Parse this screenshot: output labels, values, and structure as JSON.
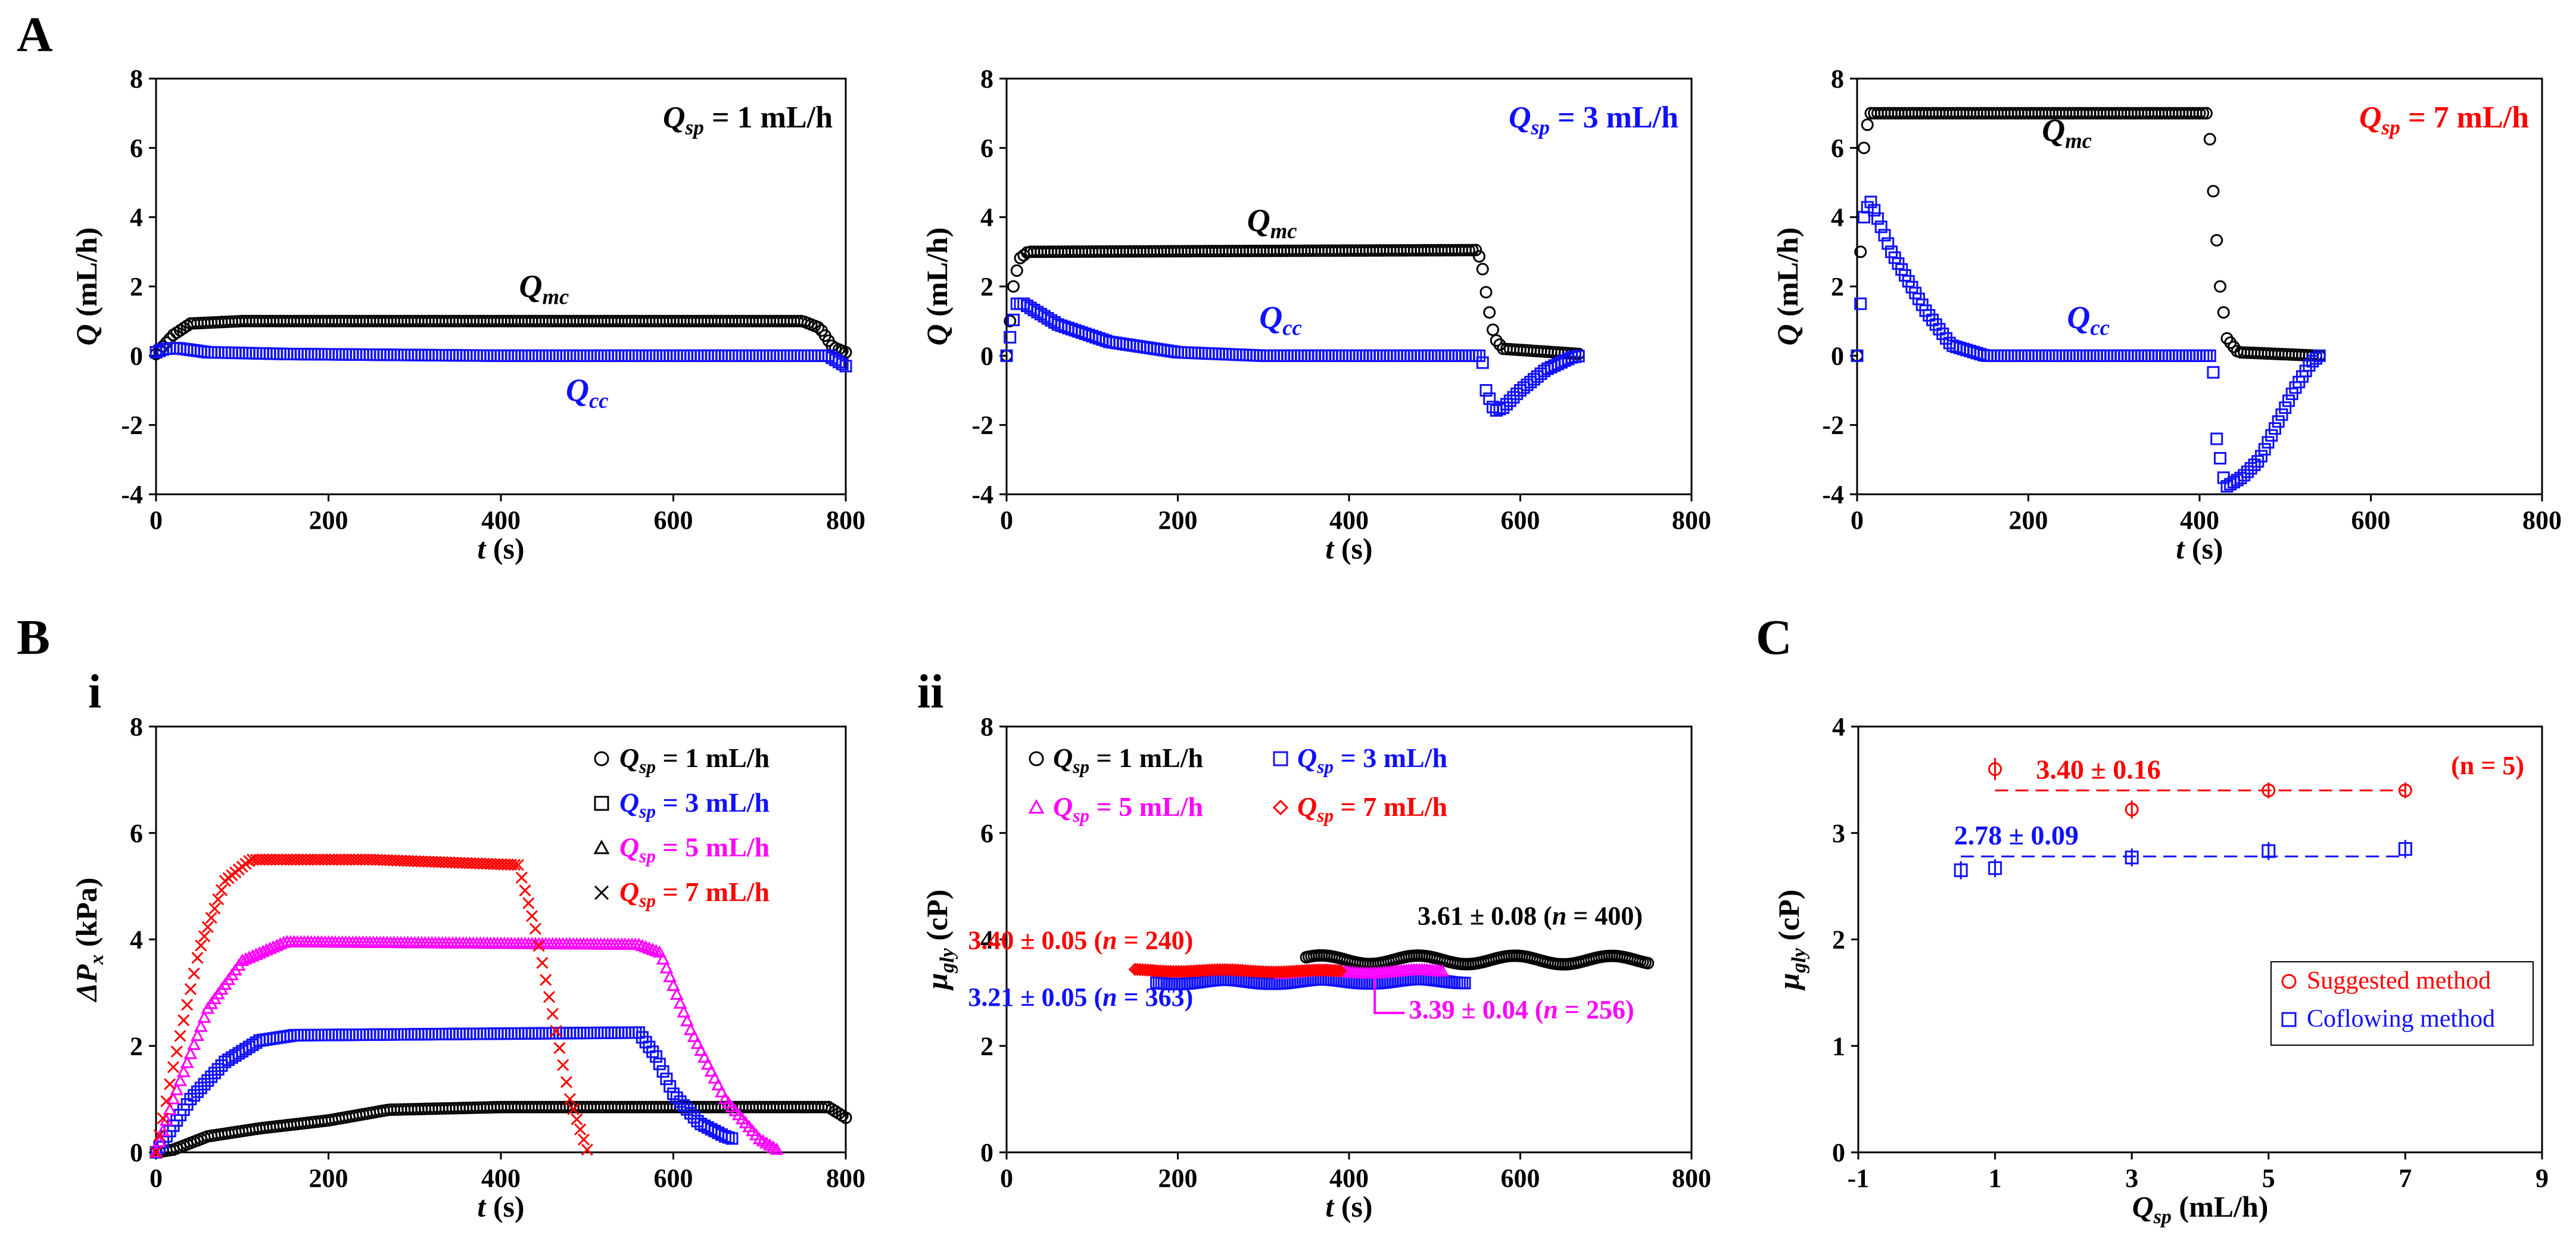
{
  "panel_labels": {
    "A": "A",
    "B": "B",
    "C": "C",
    "i": "i",
    "ii": "ii"
  },
  "colors": {
    "black": "#000000",
    "blue": "#1010ff",
    "red": "#ff0000",
    "magenta": "#ff00ff"
  },
  "chart_data": [
    {
      "id": "A1",
      "type": "scatter",
      "xlabel": "t (s)",
      "ylabel": "Q (mL/h)",
      "xlim": [
        0,
        800
      ],
      "ylim": [
        -4,
        8
      ],
      "xticks": [
        0,
        200,
        400,
        600,
        800
      ],
      "yticks": [
        -4,
        -2,
        0,
        2,
        4,
        6,
        8
      ],
      "title": "Qsp = 1 mL/h",
      "title_color": "#000000",
      "series": [
        {
          "name": "Q_mc",
          "label": "Qmc",
          "marker": "circle",
          "color": "#000000",
          "curve": [
            [
              0,
              0.05
            ],
            [
              20,
              0.6
            ],
            [
              40,
              0.93
            ],
            [
              100,
              1.0
            ],
            [
              500,
              1.0
            ],
            [
              750,
              1.0
            ],
            [
              770,
              0.8
            ],
            [
              785,
              0.25
            ],
            [
              800,
              0.1
            ]
          ]
        },
        {
          "name": "Q_cc",
          "label": "Qcc",
          "marker": "square",
          "color": "#1010ff",
          "curve": [
            [
              0,
              0.1
            ],
            [
              10,
              0.2
            ],
            [
              25,
              0.22
            ],
            [
              60,
              0.1
            ],
            [
              150,
              0.05
            ],
            [
              400,
              0.0
            ],
            [
              780,
              0.0
            ],
            [
              800,
              -0.3
            ]
          ]
        }
      ],
      "annotations": [
        {
          "text": "Qmc",
          "x": 450,
          "y": 1.7,
          "color": "#000000"
        },
        {
          "text": "Qcc",
          "x": 500,
          "y": -1.3,
          "color": "#1010ff"
        }
      ]
    },
    {
      "id": "A2",
      "type": "scatter",
      "xlabel": "t (s)",
      "ylabel": "Q (mL/h)",
      "xlim": [
        0,
        800
      ],
      "ylim": [
        -4,
        8
      ],
      "xticks": [
        0,
        200,
        400,
        600,
        800
      ],
      "yticks": [
        -4,
        -2,
        0,
        2,
        4,
        6,
        8
      ],
      "title": "Qsp = 3 mL/h",
      "title_color": "#1010ff",
      "series": [
        {
          "name": "Q_mc",
          "label": "Qmc",
          "marker": "circle",
          "color": "#000000",
          "curve": [
            [
              0,
              0.0
            ],
            [
              8,
              2.0
            ],
            [
              15,
              2.8
            ],
            [
              25,
              3.0
            ],
            [
              550,
              3.05
            ],
            [
              556,
              2.5
            ],
            [
              562,
              1.5
            ],
            [
              570,
              0.5
            ],
            [
              580,
              0.2
            ],
            [
              670,
              0.05
            ]
          ]
        },
        {
          "name": "Q_cc",
          "label": "Qcc",
          "marker": "square",
          "color": "#1010ff",
          "curve": [
            [
              0,
              0.0
            ],
            [
              6,
              0.8
            ],
            [
              12,
              1.5
            ],
            [
              20,
              1.5
            ],
            [
              60,
              0.9
            ],
            [
              120,
              0.4
            ],
            [
              200,
              0.1
            ],
            [
              300,
              0.0
            ],
            [
              555,
              0.0
            ],
            [
              560,
              -1.0
            ],
            [
              570,
              -1.6
            ],
            [
              580,
              -1.5
            ],
            [
              600,
              -1.0
            ],
            [
              630,
              -0.4
            ],
            [
              660,
              -0.05
            ],
            [
              670,
              0.0
            ]
          ]
        }
      ],
      "annotations": [
        {
          "text": "Qmc",
          "x": 310,
          "y": 3.6,
          "color": "#000000"
        },
        {
          "text": "Qcc",
          "x": 320,
          "y": 0.8,
          "color": "#1010ff"
        }
      ]
    },
    {
      "id": "A3",
      "type": "scatter",
      "xlabel": "t (s)",
      "ylabel": "Q (mL/h)",
      "xlim": [
        0,
        800
      ],
      "ylim": [
        -4,
        8
      ],
      "xticks": [
        0,
        200,
        400,
        600,
        800
      ],
      "yticks": [
        -4,
        -2,
        0,
        2,
        4,
        6,
        8
      ],
      "title": "Qsp = 7 mL/h",
      "title_color": "#ff0000",
      "series": [
        {
          "name": "Q_mc",
          "label": "Qmc",
          "marker": "circle",
          "color": "#000000",
          "curve": [
            [
              0,
              0.0
            ],
            [
              4,
              3.0
            ],
            [
              8,
              6.0
            ],
            [
              14,
              7.0
            ],
            [
              410,
              7.0
            ],
            [
              418,
              4.0
            ],
            [
              424,
              2.0
            ],
            [
              432,
              0.5
            ],
            [
              445,
              0.1
            ],
            [
              540,
              0.0
            ]
          ]
        },
        {
          "name": "Q_cc",
          "label": "Qcc",
          "marker": "square",
          "color": "#1010ff",
          "curve": [
            [
              0,
              0.0
            ],
            [
              4,
              1.5
            ],
            [
              8,
              4.0
            ],
            [
              15,
              4.5
            ],
            [
              40,
              3.0
            ],
            [
              80,
              1.3
            ],
            [
              110,
              0.3
            ],
            [
              150,
              0.0
            ],
            [
              415,
              0.0
            ],
            [
              420,
              -2.4
            ],
            [
              430,
              -3.8
            ],
            [
              450,
              -3.5
            ],
            [
              470,
              -3.0
            ],
            [
              490,
              -2.0
            ],
            [
              510,
              -1.0
            ],
            [
              530,
              -0.2
            ],
            [
              540,
              0.0
            ]
          ]
        }
      ],
      "annotations": [
        {
          "text": "Qmc",
          "x": 245,
          "y": 6.2,
          "color": "#000000"
        },
        {
          "text": "Qcc",
          "x": 270,
          "y": 0.8,
          "color": "#1010ff"
        }
      ]
    },
    {
      "id": "Bi",
      "type": "scatter",
      "xlabel": "t (s)",
      "ylabel": "ΔPx (kPa)",
      "xlim": [
        0,
        800
      ],
      "ylim": [
        0,
        8
      ],
      "xticks": [
        0,
        200,
        400,
        600,
        800
      ],
      "yticks": [
        0,
        2,
        4,
        6,
        8
      ],
      "legend": [
        {
          "text": "Qsp = 1 mL/h",
          "color": "#000000",
          "marker": "circle"
        },
        {
          "text": "Qsp = 3 mL/h",
          "color": "#1010ff",
          "marker": "square"
        },
        {
          "text": "Qsp = 5 mL/h",
          "color": "#ff00ff",
          "marker": "triangle"
        },
        {
          "text": "Qsp = 7 mL/h",
          "color": "#ff0000",
          "marker": "x"
        }
      ],
      "series": [
        {
          "name": "Qsp = 1 mL/h",
          "marker": "circle",
          "color": "#000000",
          "curve": [
            [
              0,
              0.0
            ],
            [
              20,
              0.05
            ],
            [
              60,
              0.3
            ],
            [
              120,
              0.45
            ],
            [
              200,
              0.6
            ],
            [
              270,
              0.8
            ],
            [
              400,
              0.85
            ],
            [
              780,
              0.85
            ],
            [
              800,
              0.65
            ]
          ]
        },
        {
          "name": "Qsp = 3 mL/h",
          "marker": "square",
          "color": "#1010ff",
          "curve": [
            [
              0,
              0.0
            ],
            [
              40,
              1.0
            ],
            [
              80,
              1.7
            ],
            [
              120,
              2.1
            ],
            [
              160,
              2.2
            ],
            [
              560,
              2.25
            ],
            [
              580,
              1.8
            ],
            [
              600,
              1.1
            ],
            [
              630,
              0.55
            ],
            [
              660,
              0.3
            ],
            [
              670,
              0.25
            ]
          ]
        },
        {
          "name": "Qsp = 5 mL/h",
          "marker": "triangle",
          "color": "#ff00ff",
          "curve": [
            [
              0,
              0.0
            ],
            [
              20,
              1.0
            ],
            [
              60,
              2.7
            ],
            [
              100,
              3.6
            ],
            [
              150,
              3.95
            ],
            [
              560,
              3.9
            ],
            [
              585,
              3.75
            ],
            [
              620,
              2.3
            ],
            [
              660,
              1.0
            ],
            [
              700,
              0.25
            ],
            [
              720,
              0.05
            ]
          ]
        },
        {
          "name": "Qsp = 7 mL/h",
          "marker": "x",
          "color": "#ff0000",
          "curve": [
            [
              0,
              0.0
            ],
            [
              20,
              1.6
            ],
            [
              50,
              3.8
            ],
            [
              80,
              5.1
            ],
            [
              110,
              5.5
            ],
            [
              250,
              5.5
            ],
            [
              420,
              5.4
            ],
            [
              440,
              4.2
            ],
            [
              460,
              2.6
            ],
            [
              480,
              1.0
            ],
            [
              500,
              0.05
            ]
          ]
        }
      ]
    },
    {
      "id": "Bii",
      "type": "scatter",
      "xlabel": "t (s)",
      "ylabel": "μgly (cP)",
      "xlim": [
        0,
        800
      ],
      "ylim": [
        0,
        8
      ],
      "xticks": [
        0,
        200,
        400,
        600,
        800
      ],
      "yticks": [
        0,
        2,
        4,
        6,
        8
      ],
      "legend": [
        {
          "text": "Qsp = 1 mL/h",
          "color": "#000000",
          "marker": "circle"
        },
        {
          "text": "Qsp = 3 mL/h",
          "color": "#1010ff",
          "marker": "square"
        },
        {
          "text": "Qsp = 5 mL/h",
          "color": "#ff00ff",
          "marker": "triangle"
        },
        {
          "text": "Qsp = 7 mL/h",
          "color": "#ff0000",
          "marker": "diamond"
        }
      ],
      "series": [
        {
          "name": "Qsp = 1 mL/h",
          "marker": "circle",
          "color": "#000000",
          "wave": 0.08,
          "curve": [
            [
              350,
              3.62
            ],
            [
              750,
              3.61
            ]
          ]
        },
        {
          "name": "Qsp = 3 mL/h",
          "marker": "square",
          "color": "#1010ff",
          "wave": 0.04,
          "curve": [
            [
              175,
              3.2
            ],
            [
              535,
              3.22
            ]
          ]
        },
        {
          "name": "Qsp = 5 mL/h",
          "marker": "triangle",
          "color": "#ff00ff",
          "wave": 0.03,
          "curve": [
            [
              320,
              3.38
            ],
            [
              510,
              3.4
            ]
          ]
        },
        {
          "name": "Qsp = 7 mL/h",
          "marker": "diamond",
          "color": "#ff0000",
          "wave": 0.02,
          "curve": [
            [
              150,
              3.42
            ],
            [
              390,
              3.4
            ]
          ]
        }
      ],
      "annotations": [
        {
          "text": "3.61 ± 0.08 (n = 400)",
          "color": "#000000"
        },
        {
          "text": "3.40 ± 0.05 (n = 240)",
          "color": "#ff0000"
        },
        {
          "text": "3.21 ± 0.05 (n = 363)",
          "color": "#1010ff"
        },
        {
          "text": "3.39 ± 0.04 (n = 256)",
          "color": "#ff00ff"
        }
      ]
    },
    {
      "id": "C",
      "type": "scatter",
      "xlabel": "Qsp (mL/h)",
      "ylabel": "μgly (cP)",
      "xlim": [
        -1,
        9
      ],
      "ylim": [
        0,
        4
      ],
      "xticks": [
        -1,
        1,
        3,
        5,
        7,
        9
      ],
      "yticks": [
        0,
        1,
        2,
        3,
        4
      ],
      "note": "(n = 5)",
      "series": [
        {
          "name": "Suggested method",
          "marker": "circle",
          "color": "#ff0000",
          "x": [
            1,
            3,
            5,
            7
          ],
          "y": [
            3.6,
            3.22,
            3.4,
            3.4
          ],
          "err": [
            0.06,
            0.04,
            0.03,
            0.03
          ],
          "mean_line": 3.4,
          "mean_text": "3.40 ± 0.16",
          "line_x": [
            1,
            7
          ]
        },
        {
          "name": "Coflowing method",
          "marker": "square",
          "color": "#1010ff",
          "x": [
            0.5,
            1,
            3,
            5,
            7
          ],
          "y": [
            2.65,
            2.67,
            2.77,
            2.83,
            2.85
          ],
          "err": [
            0.04,
            0.04,
            0.04,
            0.04,
            0.04
          ],
          "mean_line": 2.78,
          "mean_text": "2.78 ± 0.09",
          "line_x": [
            0.5,
            7
          ]
        }
      ],
      "legend": [
        {
          "text": "Suggested method",
          "color": "#ff0000",
          "marker": "circle"
        },
        {
          "text": "Coflowing method",
          "color": "#1010ff",
          "marker": "square"
        }
      ]
    }
  ]
}
